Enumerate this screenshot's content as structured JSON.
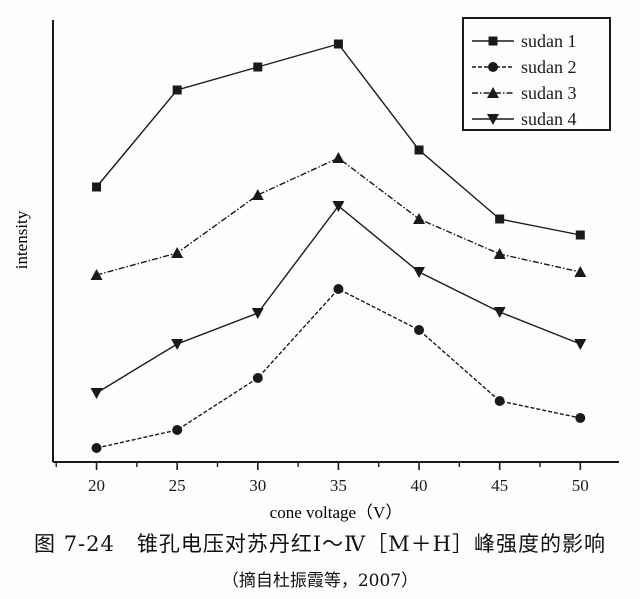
{
  "chart_data": {
    "type": "line",
    "title": "",
    "xlabel": "cone voltage（V）",
    "ylabel": "intensity",
    "x": [
      20,
      25,
      30,
      35,
      40,
      45,
      50
    ],
    "x_ticks": [
      "20",
      "25",
      "30",
      "35",
      "40",
      "45",
      "50"
    ],
    "xlim": [
      17.3,
      52.4
    ],
    "ylim": [
      0,
      442
    ],
    "y_ticks_labeled": false,
    "grid": false,
    "legend_position": "upper right (boxed)",
    "note": "Intensity values are relative (arbitrary units estimated from marker pixel heights above x-axis); y-axis has no tick labels.",
    "series": [
      {
        "name": "sudan 1",
        "marker": "square",
        "line": "solid",
        "values": [
          275,
          372,
          395,
          418,
          312,
          243,
          227
        ]
      },
      {
        "name": "sudan 2",
        "marker": "circle",
        "line": "dashed",
        "values": [
          14,
          32,
          84,
          173,
          132,
          61,
          44
        ]
      },
      {
        "name": "sudan 3",
        "marker": "triangle-up",
        "line": "dash-dot",
        "values": [
          187,
          209,
          267,
          304,
          243,
          208,
          190
        ]
      },
      {
        "name": "sudan 4",
        "marker": "triangle-down",
        "line": "solid",
        "values": [
          69,
          118,
          149,
          256,
          190,
          150,
          118
        ]
      }
    ]
  },
  "caption": {
    "figure": "图 7-24　锥孔电压对苏丹红Ⅰ～Ⅳ［M＋H］峰强度的影响",
    "source": "（摘自杜振霞等，2007）"
  },
  "style": {
    "line_color": "#1a1a1a",
    "background": "#fdfdfd"
  }
}
